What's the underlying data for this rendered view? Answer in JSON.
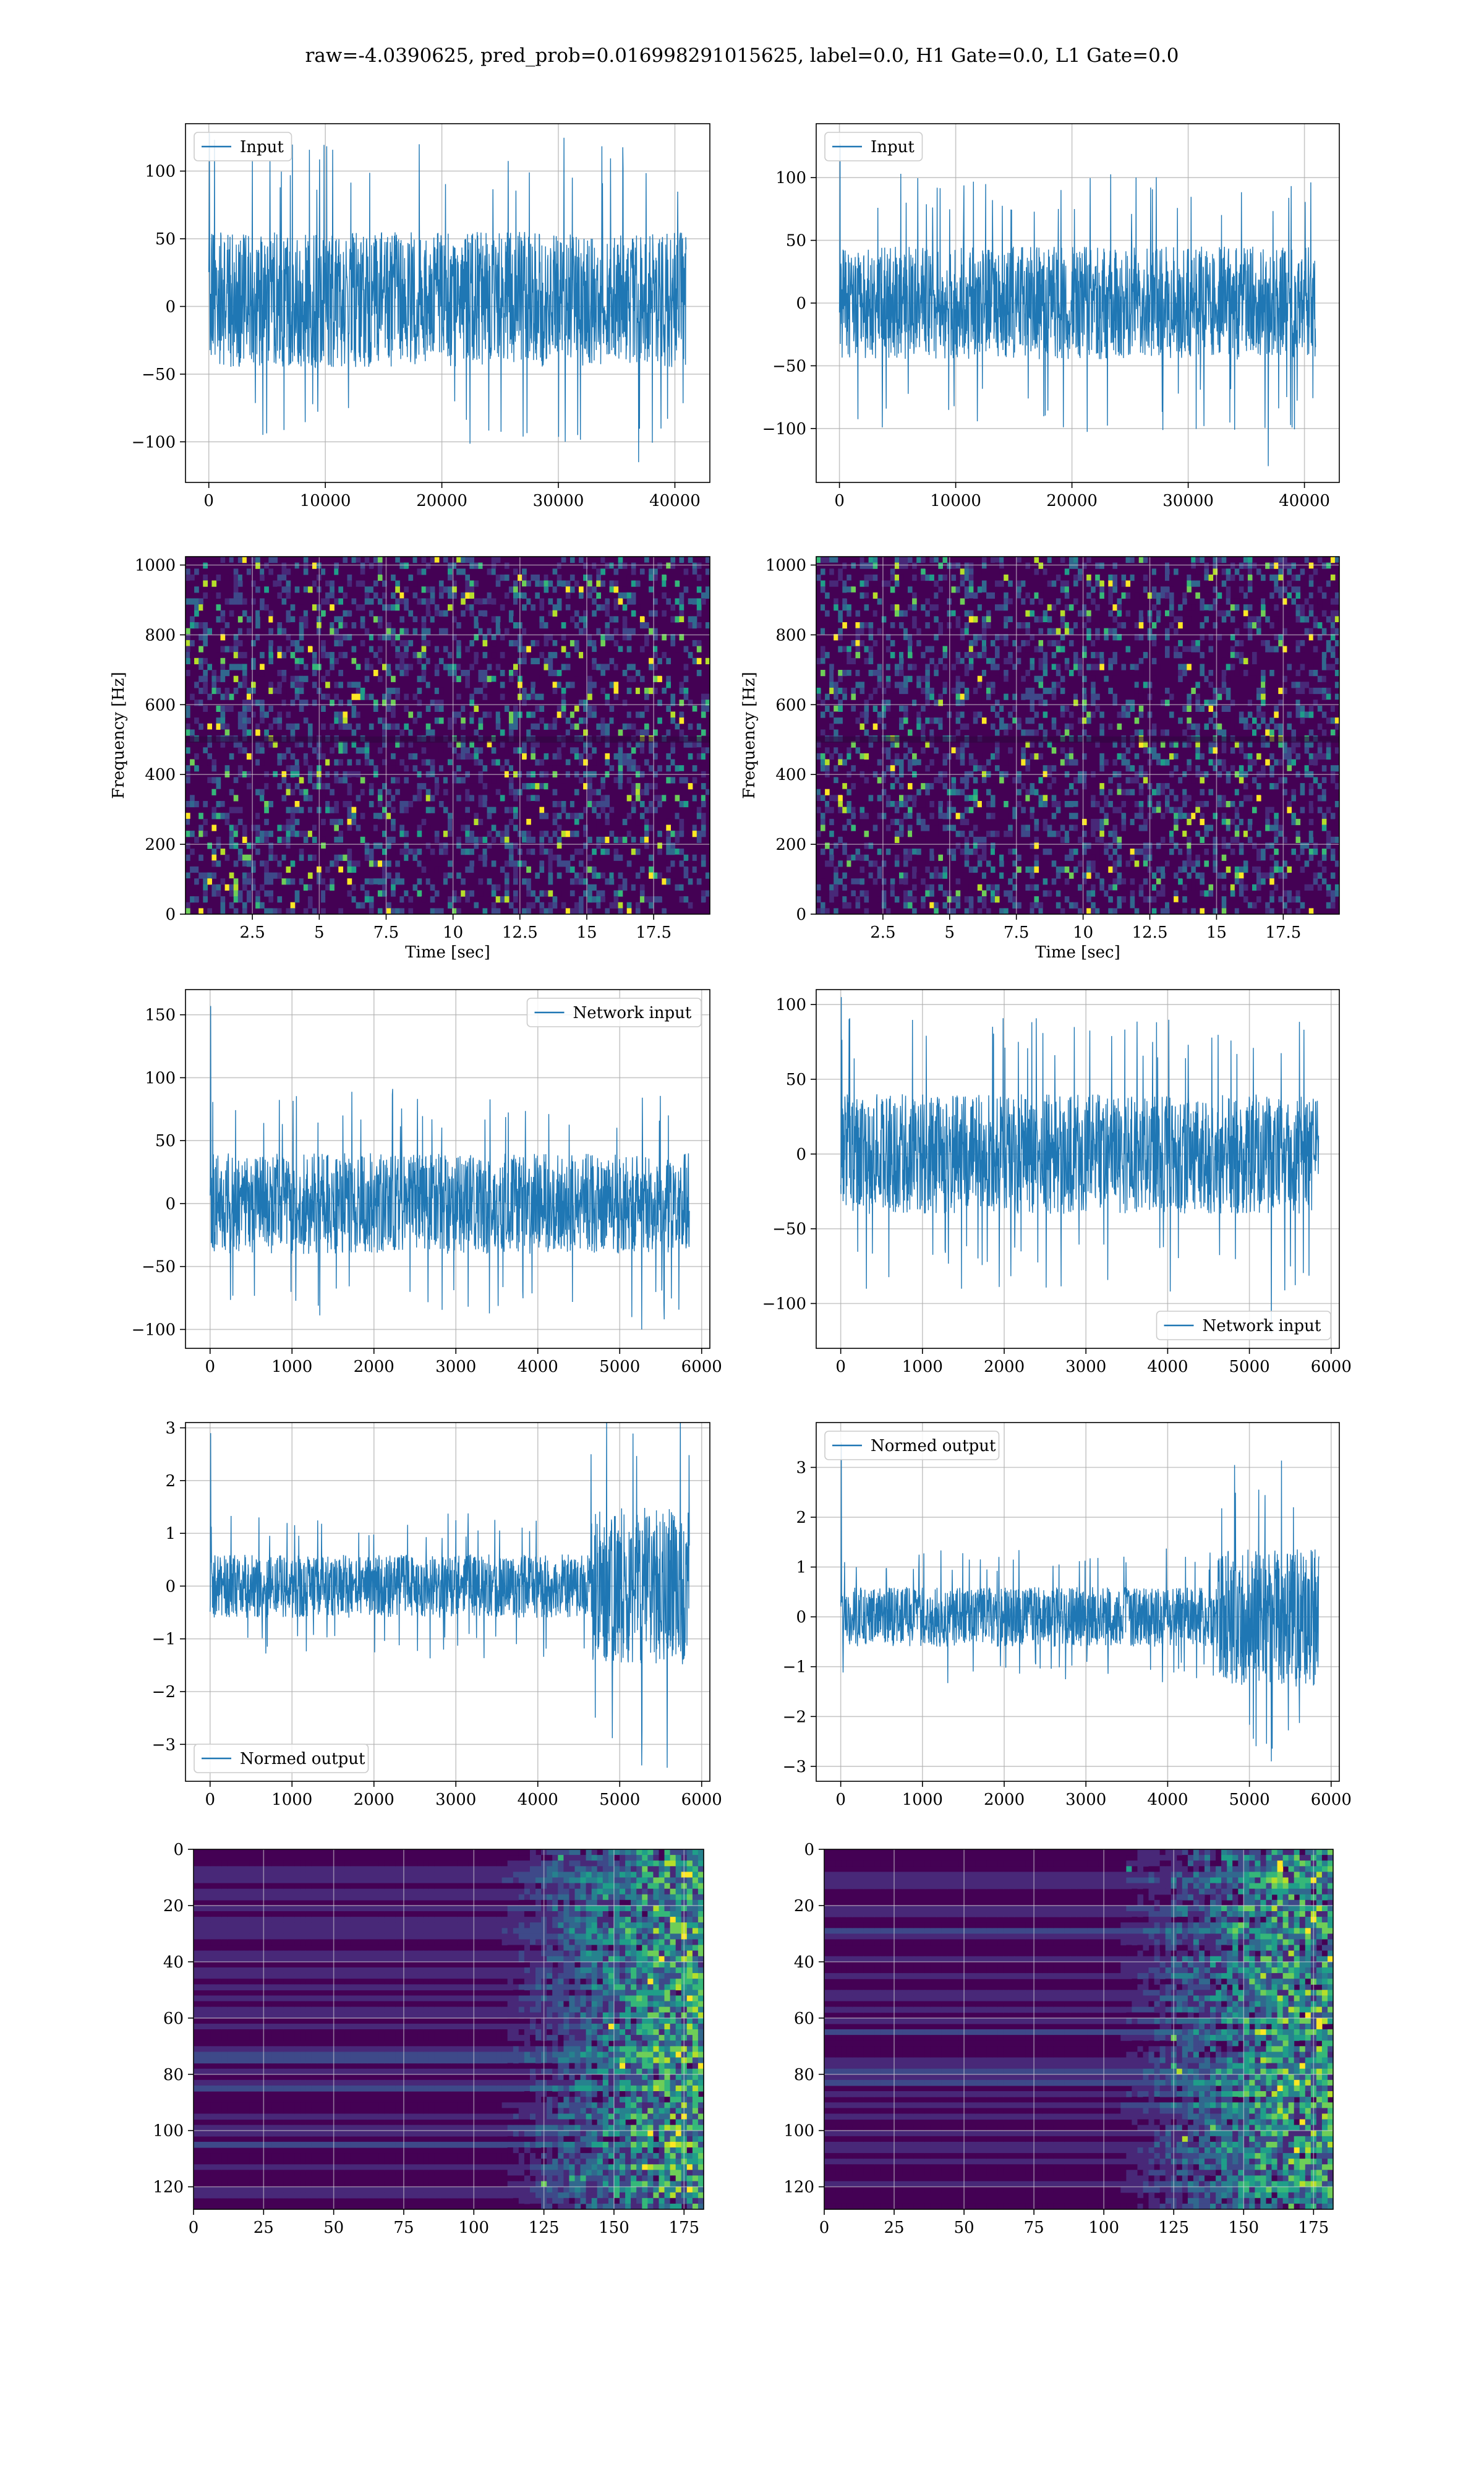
{
  "figure": {
    "title": "raw=-4.0390625, pred_prob=0.016998291015625, label=0.0, H1 Gate=0.0, L1 Gate=0.0",
    "colors": {
      "line": "#1f77b4",
      "grid": "#b0b0b0",
      "viridis_low": "#440154",
      "viridis_mid": "#21918c",
      "viridis_high": "#fde725"
    }
  },
  "chart_data": [
    {
      "type": "line",
      "id": "h1-input",
      "row": 1,
      "col": 1,
      "legend": [
        "Input"
      ],
      "legend_loc": "upper left",
      "xlim": [
        -2000,
        43000
      ],
      "ylim": [
        -130,
        135
      ],
      "xticks": [
        0,
        10000,
        20000,
        30000,
        40000
      ],
      "yticks": [
        -100,
        -50,
        0,
        50,
        100
      ],
      "x_range": [
        0,
        40960
      ],
      "band": [
        -45,
        55
      ],
      "peaks": [
        -115,
        128
      ],
      "xlabel": "",
      "ylabel": "",
      "grid": true
    },
    {
      "type": "line",
      "id": "l1-input",
      "row": 1,
      "col": 2,
      "legend": [
        "Input"
      ],
      "legend_loc": "upper left",
      "xlim": [
        -2000,
        43000
      ],
      "ylim": [
        -143,
        143
      ],
      "xticks": [
        0,
        10000,
        20000,
        30000,
        40000
      ],
      "yticks": [
        -100,
        -50,
        0,
        50
      ],
      "yticks_all": [
        -100,
        -50,
        0,
        50,
        100
      ],
      "x_range": [
        0,
        40960
      ],
      "band": [
        -45,
        45
      ],
      "peaks": [
        -130,
        127
      ],
      "xlabel": "",
      "ylabel": "",
      "grid": true
    },
    {
      "type": "heatmap",
      "id": "h1-spectrogram",
      "row": 2,
      "col": 1,
      "xlim": [
        0,
        19.6
      ],
      "ylim": [
        0,
        1024
      ],
      "xticks": [
        2.5,
        5.0,
        7.5,
        10.0,
        12.5,
        15.0,
        17.5
      ],
      "yticks": [
        0,
        200,
        400,
        600,
        800,
        1000
      ],
      "xlabel": "Time [sec]",
      "ylabel": "Frequency [Hz]",
      "grid": true
    },
    {
      "type": "heatmap",
      "id": "l1-spectrogram",
      "row": 2,
      "col": 2,
      "xlim": [
        0,
        19.6
      ],
      "ylim": [
        0,
        1024
      ],
      "xticks": [
        2.5,
        5.0,
        7.5,
        10.0,
        12.5,
        15.0,
        17.5
      ],
      "yticks": [
        0,
        200,
        400,
        600,
        800,
        1000
      ],
      "xlabel": "Time [sec]",
      "ylabel": "Frequency [Hz]",
      "grid": true
    },
    {
      "type": "line",
      "id": "h1-network-input",
      "row": 3,
      "col": 1,
      "legend": [
        "Network input"
      ],
      "legend_loc": "upper right",
      "xlim": [
        -300,
        6100
      ],
      "ylim": [
        -115,
        170
      ],
      "xticks": [
        0,
        1000,
        2000,
        3000,
        4000,
        5000,
        6000
      ],
      "yticks": [
        -100,
        -50,
        0,
        50,
        100,
        150
      ],
      "x_range": [
        0,
        5850
      ],
      "band": [
        -40,
        40
      ],
      "peaks": [
        -100,
        157
      ],
      "xlabel": "",
      "ylabel": "",
      "grid": true
    },
    {
      "type": "line",
      "id": "l1-network-input",
      "row": 3,
      "col": 2,
      "legend": [
        "Network input"
      ],
      "legend_loc": "lower right",
      "xlim": [
        -300,
        6100
      ],
      "ylim": [
        -130,
        110
      ],
      "xticks": [
        0,
        1000,
        2000,
        3000,
        4000,
        5000,
        6000
      ],
      "yticks": [
        -100,
        -50,
        0,
        50,
        100
      ],
      "x_range": [
        0,
        5850
      ],
      "band": [
        -40,
        40
      ],
      "peaks": [
        -120,
        105
      ],
      "xlabel": "",
      "ylabel": "",
      "grid": true
    },
    {
      "type": "line",
      "id": "h1-normed-output",
      "row": 4,
      "col": 1,
      "legend": [
        "Normed output"
      ],
      "legend_loc": "lower left",
      "xlim": [
        -300,
        6100
      ],
      "ylim": [
        -3.7,
        3.1
      ],
      "xticks": [
        0,
        1000,
        2000,
        3000,
        4000,
        5000,
        6000
      ],
      "yticks": [
        -3,
        -2,
        -1,
        0,
        1,
        2,
        3
      ],
      "x_range": [
        0,
        5850
      ],
      "band": [
        -0.6,
        0.6
      ],
      "peaks": [
        -3.4,
        2.9
      ],
      "burst": {
        "x": [
          4650,
          5850
        ],
        "band": [
          -1.5,
          1.5
        ]
      },
      "xlabel": "",
      "ylabel": "",
      "grid": true
    },
    {
      "type": "line",
      "id": "l1-normed-output",
      "row": 4,
      "col": 2,
      "legend": [
        "Normed output"
      ],
      "legend_loc": "upper left",
      "xlim": [
        -300,
        6100
      ],
      "ylim": [
        -3.3,
        3.9
      ],
      "xticks": [
        0,
        1000,
        2000,
        3000,
        4000,
        5000,
        6000
      ],
      "yticks": [
        -3,
        -2,
        -1,
        0,
        1,
        2,
        3
      ],
      "x_range": [
        0,
        5850
      ],
      "band": [
        -0.6,
        0.6
      ],
      "peaks": [
        -2.9,
        3.5
      ],
      "burst": {
        "x": [
          4600,
          5850
        ],
        "band": [
          -1.4,
          1.4
        ]
      },
      "xlabel": "",
      "ylabel": "",
      "grid": true
    },
    {
      "type": "heatmap",
      "id": "h1-feature-map",
      "row": 5,
      "col": 1,
      "xlim": [
        0,
        182
      ],
      "ylim": [
        128,
        0
      ],
      "xticks": [
        0,
        25,
        50,
        75,
        100,
        125,
        150,
        175
      ],
      "yticks": [
        0,
        20,
        40,
        60,
        80,
        100,
        120
      ],
      "activity_onset": 110,
      "xlabel": "",
      "ylabel": "",
      "grid": true
    },
    {
      "type": "heatmap",
      "id": "l1-feature-map",
      "row": 5,
      "col": 2,
      "xlim": [
        0,
        182
      ],
      "ylim": [
        128,
        0
      ],
      "xticks": [
        0,
        25,
        50,
        75,
        100,
        125,
        150,
        175
      ],
      "yticks": [
        0,
        20,
        40,
        60,
        80,
        100,
        120
      ],
      "activity_onset": 105,
      "xlabel": "",
      "ylabel": "",
      "grid": true
    }
  ]
}
